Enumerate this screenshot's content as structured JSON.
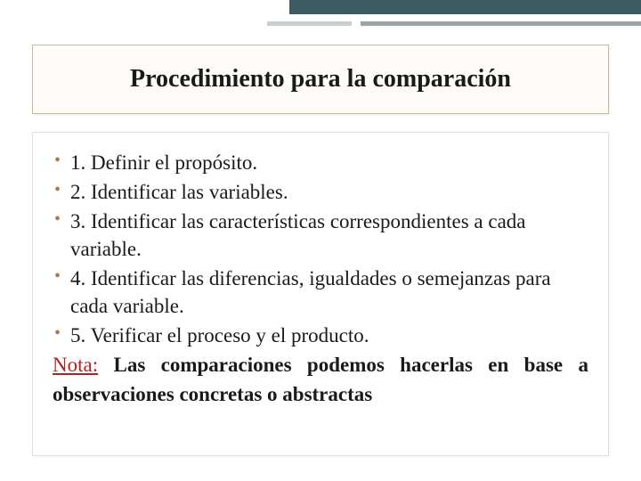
{
  "accent": {
    "bar1_color": "#3c5a5f",
    "bar2_color": "#9aa5a7",
    "bar2b_color": "#c9cfcf"
  },
  "title": {
    "text": "Procedimiento para la comparación",
    "fontsize": 28,
    "box_border_color": "#c8b99a",
    "box_bg_color": "#fdfcf8"
  },
  "content": {
    "box_border_color": "#d9e2e4",
    "bullet_color": "#b07a4a",
    "fontsize": 23,
    "items": [
      "1. Definir el propósito.",
      "2. Identificar las variables.",
      "3. Identificar las características correspondientes a cada variable.",
      "4. Identificar las diferencias, igualdades o semejanzas para cada variable.",
      "5. Verificar el proceso y el producto."
    ],
    "note_label": "Nota:",
    "note_label_color": "#b22222",
    "note_body": " Las comparaciones podemos hacerlas en base a observaciones concretas o abstractas"
  },
  "background_color": "#ffffff"
}
